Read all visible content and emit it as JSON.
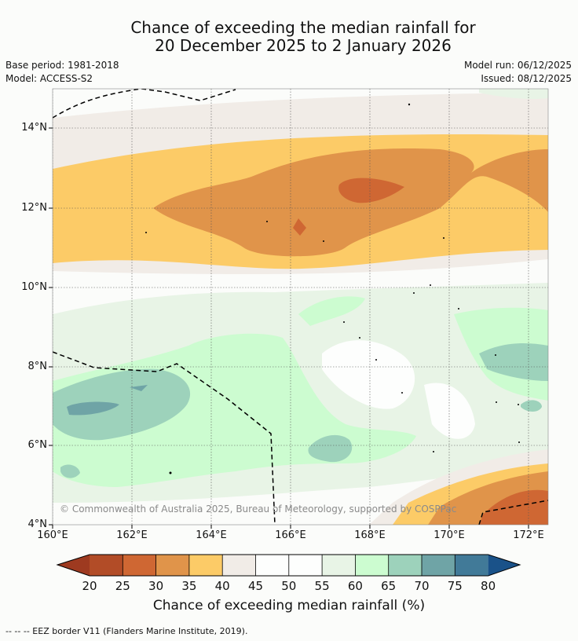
{
  "header": {
    "title_line1": "Chance of exceeding the median rainfall for",
    "title_line2": "20 December 2025 to 2 January 2026",
    "base_period": "Base period: 1981-2018",
    "model": "Model: ACCESS-S2",
    "model_run": "Model run: 06/12/2025",
    "issued": "Issued: 08/12/2025"
  },
  "map": {
    "lat_labels": [
      "14°N",
      "12°N",
      "10°N",
      "8°N",
      "6°N",
      "4°N"
    ],
    "lon_labels": [
      "160°E",
      "162°E",
      "164°E",
      "166°E",
      "168°E",
      "170°E",
      "172°E"
    ],
    "copyright": "© Commonwealth of Australia 2025, Bureau of Meteorology, supported by COSPPac"
  },
  "colorbar": {
    "ticks": [
      "20",
      "25",
      "30",
      "35",
      "40",
      "45",
      "50",
      "55",
      "60",
      "65",
      "70",
      "75",
      "80"
    ],
    "colors": [
      "#9e3a20",
      "#b24c27",
      "#cf6733",
      "#e0944a",
      "#fccb67",
      "#f1ece7",
      "#fdfefd",
      "#fdfefd",
      "#e8f4e6",
      "#ccfcd0",
      "#9dd2bb",
      "#6fa4a6",
      "#417a98",
      "#1a5289"
    ],
    "title": "Chance of exceeding median rainfall (%)"
  },
  "footer": {
    "legend": "-- -- -- EEZ border V11 (Flanders Marine Institute, 2019)."
  }
}
